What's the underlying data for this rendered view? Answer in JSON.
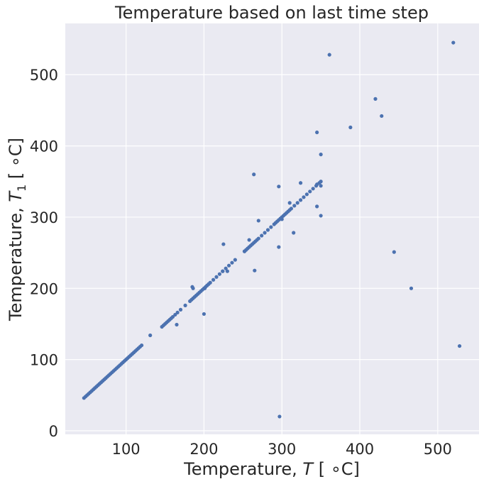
{
  "chart_data": {
    "type": "scatter",
    "title": "Temperature based on last time step",
    "xlabel": {
      "prefix": "Temperature, ",
      "var": "T",
      "sub": "",
      "unit": " [ ∘C]"
    },
    "ylabel": {
      "prefix": "Temperature, ",
      "var": "T",
      "sub": "1",
      "unit": " [ ∘C]"
    },
    "xlim": [
      22,
      553
    ],
    "ylim": [
      -5,
      572
    ],
    "xticks": [
      100,
      200,
      300,
      400,
      500
    ],
    "yticks": [
      0,
      100,
      200,
      300,
      400,
      500
    ],
    "grid": true,
    "colors": {
      "background": "#EAEAF2",
      "grid": "#FFFFFF",
      "marker": "#4C72B0",
      "text": "#262626"
    },
    "marker_size": 2.6,
    "series": [
      {
        "x": [
          46,
          48,
          50,
          52,
          54,
          56,
          58,
          60,
          62,
          64,
          66,
          68,
          70,
          72,
          74,
          76,
          78,
          80,
          82,
          84,
          86,
          88,
          90,
          92,
          94,
          96,
          98,
          100,
          102,
          104,
          106,
          108,
          110,
          112,
          114,
          116,
          118,
          120,
          131,
          146,
          148,
          150,
          152,
          154,
          156,
          158,
          160,
          163,
          166,
          170,
          176,
          182,
          184,
          186,
          188,
          190,
          192,
          194,
          196,
          198,
          200,
          202,
          204,
          206,
          208,
          212,
          216,
          220,
          224,
          228,
          232,
          236,
          240,
          252,
          254,
          256,
          258,
          260,
          262,
          264,
          266,
          268,
          270,
          274,
          278,
          282,
          286,
          290,
          292,
          294,
          296,
          298,
          300,
          302,
          304,
          306,
          308,
          310,
          312,
          316,
          320,
          324,
          328,
          332,
          336,
          340,
          344,
          348,
          225,
          224,
          201,
          165,
          200,
          186,
          258,
          252,
          264,
          270,
          296,
          310,
          300,
          315,
          324,
          350,
          345,
          350,
          265,
          296,
          297,
          345,
          345,
          350,
          230,
          185,
          350,
          388,
          361,
          420,
          428,
          444,
          466,
          520,
          528
        ],
        "y": [
          46,
          48,
          50,
          52,
          54,
          56,
          58,
          60,
          62,
          64,
          66,
          68,
          70,
          72,
          74,
          76,
          78,
          80,
          82,
          84,
          86,
          88,
          90,
          92,
          94,
          96,
          98,
          100,
          102,
          104,
          106,
          108,
          110,
          112,
          114,
          116,
          118,
          120,
          134,
          146,
          148,
          150,
          152,
          154,
          156,
          158,
          160,
          163,
          166,
          170,
          176,
          182,
          184,
          186,
          188,
          190,
          192,
          194,
          196,
          198,
          200,
          202,
          204,
          206,
          208,
          212,
          216,
          220,
          224,
          228,
          232,
          236,
          240,
          252,
          254,
          256,
          258,
          260,
          262,
          264,
          266,
          268,
          270,
          274,
          278,
          282,
          286,
          290,
          292,
          294,
          296,
          298,
          300,
          302,
          304,
          306,
          308,
          310,
          312,
          316,
          320,
          324,
          328,
          332,
          336,
          340,
          344,
          348,
          262,
          224,
          200,
          149,
          164,
          200,
          268,
          252,
          360,
          295,
          258,
          320,
          297,
          278,
          348,
          350,
          315,
          344,
          225,
          343,
          20,
          346,
          419,
          388,
          224,
          202,
          302,
          426,
          528,
          466,
          442,
          251,
          200,
          545,
          119
        ]
      }
    ]
  }
}
